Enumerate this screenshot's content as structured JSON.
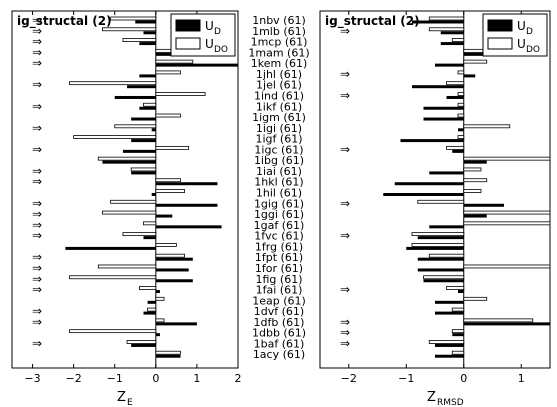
{
  "chart_data": [
    {
      "type": "bar",
      "orientation": "horizontal",
      "title": "ig_structal (2)",
      "xlabel": "Z",
      "xlabel_sub": "E",
      "xlim": [
        -3.5,
        2
      ],
      "xticks": [
        -3,
        -2,
        -1,
        0,
        1,
        2
      ],
      "legend": {
        "position": "top-right",
        "entries": [
          {
            "main": "U",
            "sub": "D",
            "fill": "#000000"
          },
          {
            "main": "U",
            "sub": "DO",
            "fill": "#ffffff"
          }
        ]
      },
      "categories": [
        "1nbv (61)",
        "1mlb (61)",
        "1mcp (61)",
        "1mam (61)",
        "1kem (61)",
        "1jhl (61)",
        "1jel (61)",
        "1ind (61)",
        "1ikf (61)",
        "1igm (61)",
        "1igi (61)",
        "1igf (61)",
        "1igc (61)",
        "1ibg (61)",
        "1iai (61)",
        "1hkl (61)",
        "1hil (61)",
        "1gig (61)",
        "1ggi (61)",
        "1gaf (61)",
        "1fvc (61)",
        "1frg (61)",
        "1fpt (61)",
        "1for (61)",
        "1fig (61)",
        "1fai (61)",
        "1eap (61)",
        "1dvf (61)",
        "1dfb (61)",
        "1dbb (61)",
        "1baf (61)",
        "1acy (61)"
      ],
      "arrow_rows": [
        0,
        1,
        2,
        3,
        4,
        6,
        8,
        10,
        12,
        14,
        15,
        17,
        18,
        19,
        20,
        22,
        23,
        24,
        25,
        27,
        28,
        30
      ],
      "series": [
        {
          "name": "UD",
          "values": [
            -0.5,
            -0.3,
            -0.4,
            1.2,
            2.0,
            -0.4,
            -0.7,
            -1.0,
            -0.4,
            -0.6,
            -0.1,
            -0.6,
            -0.8,
            -1.3,
            -0.6,
            1.5,
            -0.1,
            1.5,
            0.4,
            1.6,
            -0.3,
            -2.2,
            0.9,
            0.8,
            0.9,
            0.1,
            -0.2,
            -0.3,
            1.0,
            0.1,
            -0.6,
            0.6
          ]
        },
        {
          "name": "UDO",
          "values": [
            -1.1,
            -1.3,
            -0.8,
            0.6,
            0.9,
            0.6,
            -2.1,
            1.2,
            -0.3,
            0.6,
            -1.0,
            -2.0,
            0.8,
            -1.4,
            -0.6,
            0.6,
            0.7,
            -1.1,
            -1.3,
            -0.3,
            -0.8,
            0.5,
            0.7,
            -1.4,
            -2.1,
            -0.4,
            0.2,
            -0.2,
            0.2,
            -2.1,
            -0.7,
            0.6
          ]
        }
      ]
    },
    {
      "type": "bar",
      "orientation": "horizontal",
      "title": "ig_structal (2)",
      "xlabel": "Z",
      "xlabel_sub": "RMSD",
      "xlim": [
        -2.5,
        1.5
      ],
      "xticks": [
        -2,
        -1,
        0,
        1
      ],
      "legend": {
        "position": "top-right",
        "entries": [
          {
            "main": "U",
            "sub": "D",
            "fill": "#000000"
          },
          {
            "main": "U",
            "sub": "DO",
            "fill": "#ffffff"
          }
        ]
      },
      "arrow_rows": [
        1,
        5,
        7,
        12,
        17,
        20,
        25,
        28,
        29,
        30
      ],
      "series": [
        {
          "name": "UD",
          "values": [
            -0.9,
            -0.4,
            -0.4,
            0.9,
            -0.5,
            0.2,
            -0.9,
            -0.3,
            -0.7,
            -0.7,
            -0.1,
            -1.1,
            -0.2,
            0.4,
            -0.6,
            -1.2,
            -1.4,
            0.7,
            0.4,
            -0.6,
            -0.8,
            -1.0,
            -0.8,
            -0.8,
            -0.7,
            -0.1,
            -0.5,
            -0.5,
            1.5,
            -0.2,
            -0.5,
            -0.5
          ]
        },
        {
          "name": "UDO",
          "values": [
            -0.6,
            -0.6,
            -0.2,
            1.1,
            0.4,
            -0.1,
            -0.3,
            -0.1,
            -0.1,
            -0.1,
            0.8,
            -0.1,
            -0.3,
            1.5,
            0.3,
            0.4,
            0.3,
            -0.8,
            1.5,
            1.5,
            -0.9,
            -0.9,
            -0.6,
            1.5,
            -0.7,
            -0.3,
            0.4,
            -0.2,
            1.2,
            -0.2,
            -0.6,
            -0.2
          ]
        }
      ]
    }
  ]
}
